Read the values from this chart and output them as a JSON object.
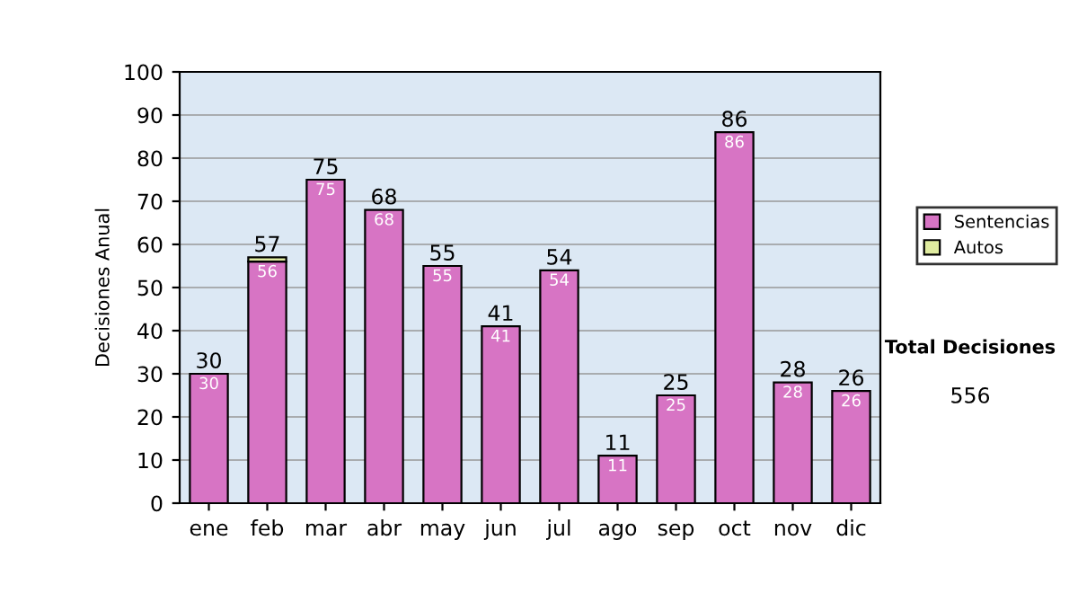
{
  "chart_data": {
    "type": "bar",
    "stacked": true,
    "ylabel": "Decisiones Anual",
    "categories": [
      "ene",
      "feb",
      "mar",
      "abr",
      "may",
      "jun",
      "jul",
      "ago",
      "sep",
      "oct",
      "nov",
      "dic"
    ],
    "series": [
      {
        "name": "Sentencias",
        "color": "#d774c4",
        "values": [
          30,
          56,
          75,
          68,
          55,
          41,
          54,
          11,
          25,
          86,
          28,
          26
        ],
        "value_labels": [
          "30",
          "56",
          "75",
          "68",
          "55",
          "41",
          "54",
          "11",
          "25",
          "86",
          "28",
          "26"
        ]
      },
      {
        "name": "Autos",
        "color": "#e0eca0",
        "values": [
          null,
          1,
          null,
          null,
          null,
          null,
          null,
          null,
          null,
          null,
          null,
          null
        ]
      }
    ],
    "totals": [
      "30",
      "57",
      "75",
      "68",
      "55",
      "41",
      "54",
      "11",
      "25",
      "86",
      "28",
      "26"
    ],
    "ylim": [
      0,
      100
    ],
    "yticks": [
      0,
      10,
      20,
      30,
      40,
      50,
      60,
      70,
      80,
      90,
      100
    ],
    "grid": "y",
    "legend": "right",
    "annotations": [
      "Total Decisiones",
      "556"
    ]
  }
}
